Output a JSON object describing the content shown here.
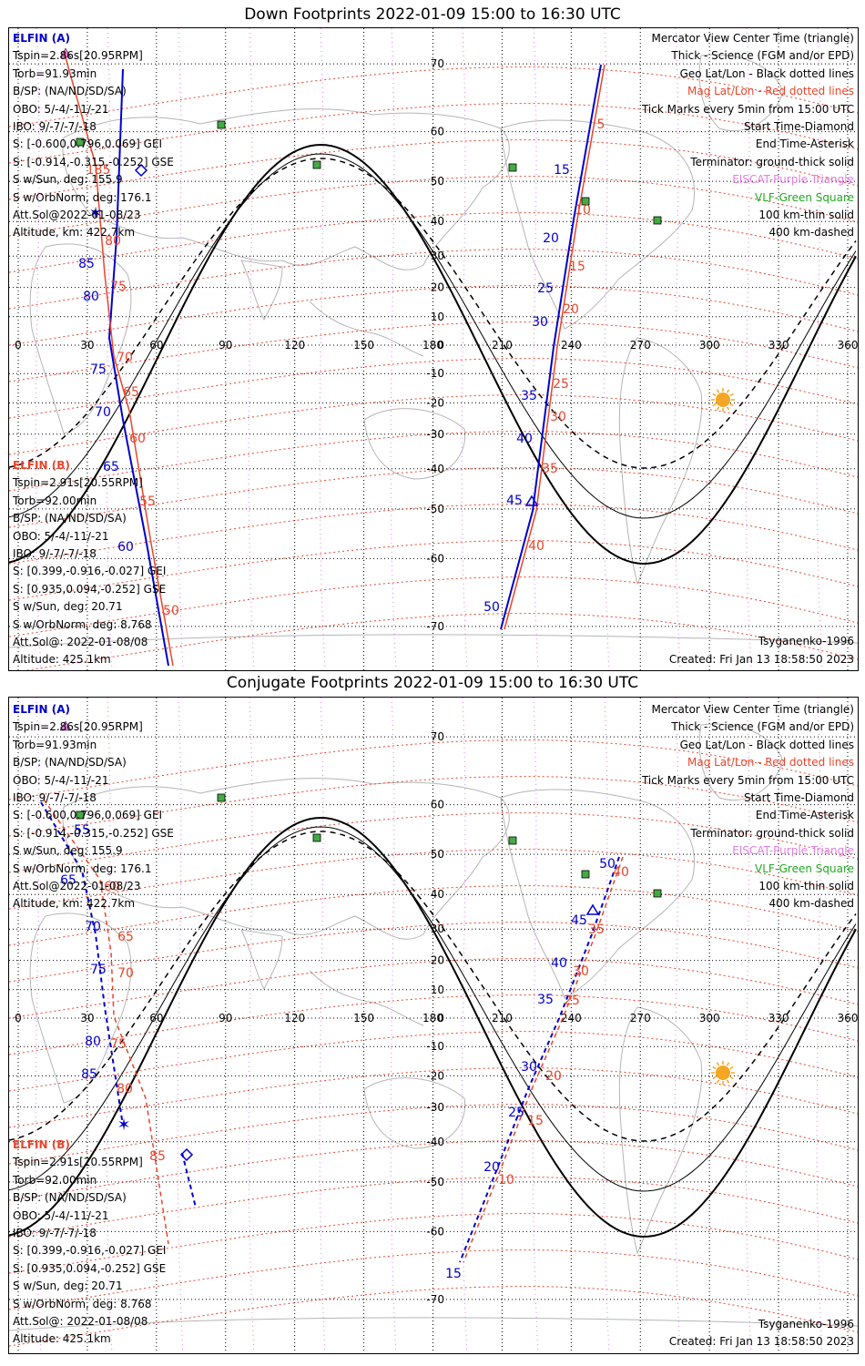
{
  "panels": [
    {
      "title": "Down Footprints 2022-01-09 15:00 to 16:30 UTC",
      "elfin_a": {
        "header": "ELFIN (A)",
        "lines": [
          "Tspin=2.86s[20.95RPM]",
          "Torb=91.93min",
          "B/SP: (NA/ND/SD/SA)",
          "OBO: 5/-4/-11/-21",
          "IBO: 9/-7/-7/-18",
          "S: [-0.600,0.796,0.069] GEI",
          "S: [-0.914,-0.315,-0.252] GSE",
          "S w/Sun, deg: 155.9",
          "S w/OrbNorm, deg: 176.1",
          "Att.Sol@2022-01-08/23",
          "Altitude, km: 422.7km"
        ]
      },
      "elfin_b": {
        "header": "ELFIN (B)",
        "lines": [
          "Tspin=2.91s[20.55RPM]",
          "Torb=92.00min",
          "B/SP: (NA/ND/SD/SA)",
          "OBO: 5/-4/-11/-21",
          "IBO: 9/-7/-7/-18",
          "S: [0.399,-0.916,-0.027] GEI",
          "S: [0.935,0.094,-0.252] GSE",
          "S w/Sun, deg: 20.71",
          "S w/OrbNorm, deg: 8.768",
          "Att.Sol@: 2022-01-08/08",
          "Altitude: 425.1km"
        ]
      },
      "b_line_colors": [
        "#000",
        "#000",
        "#000",
        "#000",
        "#000",
        "#000",
        "#000",
        "#000",
        "#000",
        "#000",
        "#000"
      ],
      "model": "Tsyganenko-1996",
      "created": "Created: Fri Jan 13 18:58:50 2023"
    },
    {
      "title": "Conjugate Footprints 2022-01-09 15:00 to 16:30 UTC",
      "elfin_a": {
        "header": "ELFIN (A)",
        "lines": [
          "Tspin=2.86s[20.95RPM]",
          "Torb=91.93min",
          "B/SP: (NA/ND/SD/SA)",
          "OBO: 5/-4/-11/-21",
          "IBO: 9/-7/-7/-18",
          "S: [-0.600,0.796,0.069] GEI",
          "S: [-0.914,-0.315,-0.252] GSE",
          "S w/Sun, deg: 155.9",
          "S w/OrbNorm, deg: 176.1",
          "Att.Sol@2022-01-08/23",
          "Altitude, km: 422.7km"
        ]
      },
      "elfin_b": {
        "header": "ELFIN (B)",
        "lines": [
          "Tspin=2.91s[20.55RPM]",
          "Torb=92.00min",
          "B/SP: (NA/ND/SD/SA)",
          "OBO: 5/-4/-11/-21",
          "IBO: 9/-7/-7/-18",
          "S: [0.399,-0.916,-0.027] GEI",
          "S: [0.935,0.094,-0.252] GSE",
          "S w/Sun, deg: 20.71",
          "S w/OrbNorm, deg: 8.768",
          "Att.Sol@: 2022-01-08/08",
          "Altitude: 425.1km"
        ]
      },
      "model": "Tsyganenko-1996",
      "created": "Created: Fri Jan 13 18:58:50 2023"
    }
  ],
  "legend": [
    {
      "text": "Mercator View Center Time (triangle)",
      "color": "#000000"
    },
    {
      "text": "Thick - Science (FGM and/or EPD)",
      "color": "#000000"
    },
    {
      "text": "Geo Lat/Lon - Black dotted lines",
      "color": "#000000"
    },
    {
      "text": "Mag Lat/Lon - Red dotted lines",
      "color": "#e8452c"
    },
    {
      "text": "Tick Marks every 5min from 15:00 UTC",
      "color": "#000000"
    },
    {
      "text": "Start Time-Diamond",
      "color": "#000000"
    },
    {
      "text": "End Time-Asterisk",
      "color": "#000000"
    },
    {
      "text": "Terminator: ground-thick solid",
      "color": "#000000"
    },
    {
      "text": "EISCAT-Purple Triangle",
      "color": "#e07fe0"
    },
    {
      "text": "VLF-Green Square",
      "color": "#22aa22"
    },
    {
      "text": "100 km-thin solid",
      "color": "#000000"
    },
    {
      "text": "400 km-dashed",
      "color": "#000000"
    }
  ],
  "map": {
    "lon_ticks": [
      "0",
      "30",
      "60",
      "90",
      "120",
      "150",
      "180",
      "210",
      "240",
      "270",
      "300",
      "330",
      "360"
    ],
    "lat_ticks": [
      "70",
      "60",
      "50",
      "40",
      "30",
      "20",
      "10",
      "0",
      "-10",
      "-20",
      "-30",
      "-40",
      "-50",
      "-60",
      "-70"
    ],
    "colors": {
      "elfin_a": "#0000cc",
      "elfin_b": "#e8452c",
      "geo_grid": "#000000",
      "mag_grid": "#e8452c",
      "eiscat": "#e07fe0",
      "vlf": "#44aa44",
      "sun": "#f5a623",
      "coast": "#b5b5b5"
    }
  },
  "down_track_labels": {
    "a": [
      "85",
      "80",
      "75",
      "70",
      "65",
      "60",
      "15",
      "20",
      "25",
      "30",
      "35",
      "40",
      "45",
      "50"
    ],
    "b": [
      "185",
      "80",
      "75",
      "70",
      "65",
      "60",
      "55",
      "50",
      "5",
      "10",
      "15",
      "20",
      "25",
      "30",
      "35",
      "40"
    ]
  },
  "conj_track_labels": {
    "a": [
      "55",
      "65",
      "70",
      "75",
      "80",
      "85",
      "50",
      "45",
      "40",
      "35",
      "30",
      "25",
      "20",
      "15"
    ],
    "b": [
      "60",
      "65",
      "70",
      "75",
      "80",
      "85",
      "40",
      "35",
      "30",
      "25",
      "20",
      "15",
      "10"
    ]
  }
}
